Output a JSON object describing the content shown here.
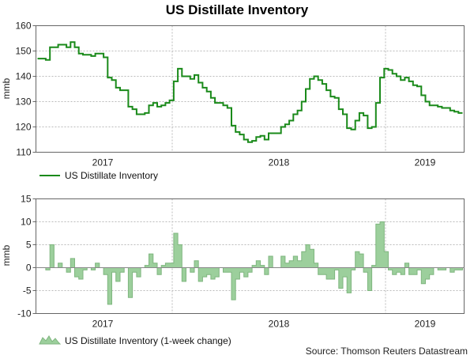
{
  "chart_data": [
    {
      "type": "line",
      "title": "US Distillate Inventory",
      "ylabel": "mmb",
      "xlabel": "",
      "ylim": [
        110,
        160
      ],
      "yticks": [
        110,
        120,
        130,
        140,
        150,
        160
      ],
      "x_tick_labels": [
        "2017",
        "2018",
        "2019"
      ],
      "legend": "US Distillate Inventory",
      "color": "#1a8a1a",
      "series": [
        {
          "name": "US Distillate Inventory",
          "values": [
            147,
            147,
            146.5,
            151.5,
            151.5,
            152.5,
            152.5,
            151.5,
            153.5,
            151.5,
            149,
            148.5,
            148.5,
            148,
            149,
            149,
            147.5,
            139.5,
            138.5,
            135.5,
            134.5,
            134.5,
            128,
            127,
            125,
            125,
            125.5,
            128.5,
            129.5,
            128,
            128.5,
            129.5,
            130.5,
            138,
            143,
            140,
            140,
            139,
            140.5,
            137.5,
            135.5,
            134,
            131.5,
            129.5,
            129.5,
            128.5,
            127.5,
            120.5,
            118,
            117,
            115,
            114,
            114.5,
            116,
            116.5,
            115,
            117.5,
            117.5,
            117.5,
            120,
            121,
            122.5,
            125,
            126.5,
            130,
            135,
            139,
            140,
            138.5,
            137,
            134.5,
            132,
            131.5,
            127,
            125,
            119.5,
            119,
            122.5,
            125.5,
            124.5,
            119.5,
            120,
            129.5,
            139.5,
            143,
            142.5,
            141,
            140,
            138.5,
            139.5,
            138,
            136.5,
            136,
            132.5,
            130,
            128.5,
            128.5,
            128,
            127.5,
            127.5,
            126.5,
            126,
            125.5
          ]
        }
      ]
    },
    {
      "type": "area",
      "title": "",
      "ylabel": "mmb",
      "xlabel": "",
      "ylim": [
        -10,
        15
      ],
      "yticks": [
        -10,
        -5,
        0,
        5,
        10,
        15
      ],
      "x_tick_labels": [
        "2017",
        "2018",
        "2019"
      ],
      "legend": "US Distillate Inventory (1-week change)",
      "color": "#9ccf9c",
      "series": [
        {
          "name": "US Distillate Inventory (1-week change)",
          "values": [
            0,
            0,
            -0.5,
            5,
            0,
            1,
            0,
            -1,
            2,
            -2,
            -2.5,
            -0.5,
            0,
            -0.5,
            1,
            0,
            -1.5,
            -8,
            -1,
            -3,
            -1,
            0,
            -6.5,
            -1,
            -2,
            0,
            0.5,
            3,
            1,
            -1.5,
            0.5,
            1,
            1,
            7.5,
            5,
            -3,
            0,
            -1,
            1.5,
            -3,
            -2,
            -1.5,
            -2.5,
            -2,
            0,
            -1,
            -1,
            -7,
            -2.5,
            -1,
            -2,
            -1,
            0.5,
            1.5,
            0.5,
            -1.5,
            2.5,
            0,
            0,
            2.5,
            1,
            1.5,
            2.5,
            1.5,
            3.5,
            5,
            4,
            1,
            -1.5,
            -1.5,
            -2.5,
            -2.5,
            -0.5,
            -4.5,
            -2,
            -5.5,
            -0.5,
            3.5,
            3,
            -1,
            -5,
            0.5,
            9.5,
            10,
            3.5,
            -0.5,
            -1.5,
            -1,
            -1.5,
            1,
            -1.5,
            -1.5,
            -0.5,
            -3.5,
            -2.5,
            -1.5,
            0,
            -0.5,
            -0.5,
            0,
            -1,
            -0.5,
            -0.5
          ]
        }
      ]
    }
  ],
  "source": "Source: Thomson Reuters Datastream"
}
